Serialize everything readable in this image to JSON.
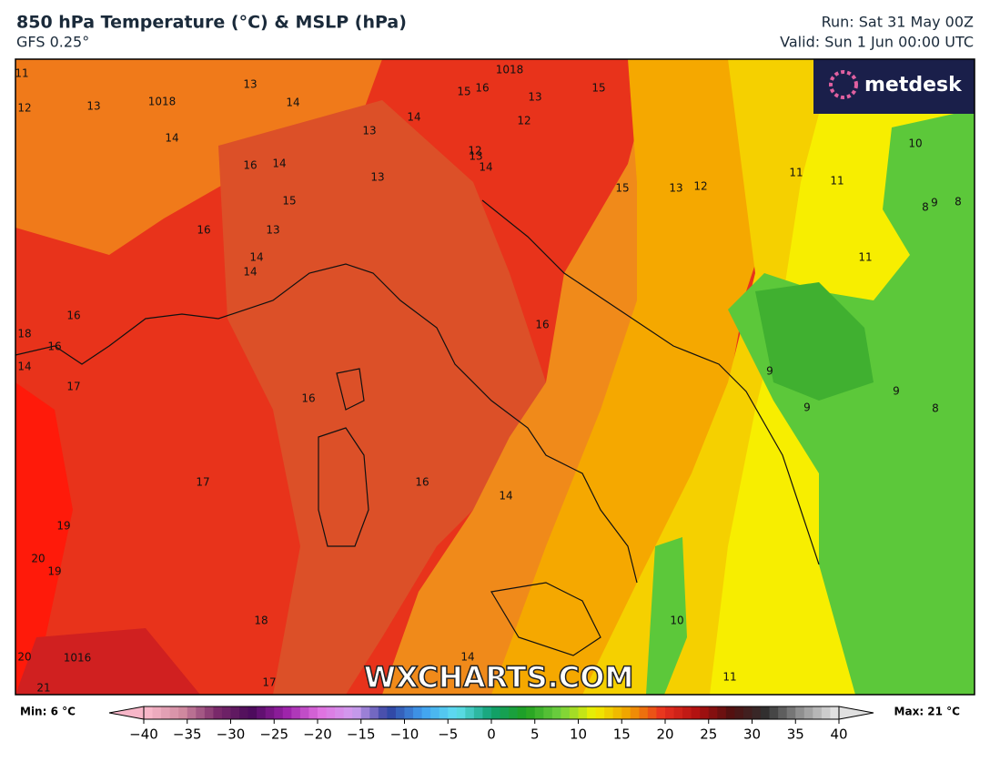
{
  "header": {
    "title": "850 hPa Temperature (°C) & MSLP (hPa)",
    "subtitle": "GFS 0.25°",
    "run": "Run: Sat 31 May 00Z",
    "valid": "Valid: Sun 1 Jun 00:00 UTC"
  },
  "logo": "metdesk",
  "watermark": "WXCHARTS.COM",
  "map_labels": [
    "11",
    "12",
    "13",
    "14",
    "13",
    "14",
    "16",
    "14",
    "15",
    "16",
    "13",
    "14",
    "14",
    "16",
    "18",
    "16",
    "14",
    "17",
    "16",
    "17",
    "19",
    "20",
    "19",
    "18",
    "20",
    "21",
    "17",
    "16",
    "14",
    "16",
    "14",
    "10",
    "11",
    "13",
    "12",
    "15",
    "11",
    "11",
    "10",
    "8",
    "9",
    "8",
    "11",
    "9",
    "9",
    "9",
    "8",
    "13",
    "13",
    "13",
    "14",
    "12",
    "13",
    "15",
    "16",
    "15",
    "14",
    "12",
    "1018",
    "1018",
    "1016"
  ],
  "legend": {
    "min": "Min: 6 °C",
    "max": "Max: 21 °C",
    "lim": [
      -40,
      40
    ],
    "ticks": [
      {
        "value": -40,
        "label": "−40"
      },
      {
        "value": -35,
        "label": "−35"
      },
      {
        "value": -30,
        "label": "−30"
      },
      {
        "value": -25,
        "label": "−25"
      },
      {
        "value": -20,
        "label": "−20"
      },
      {
        "value": -15,
        "label": "−15"
      },
      {
        "value": -10,
        "label": "−10"
      },
      {
        "value": -5,
        "label": "−5"
      },
      0,
      5,
      10,
      15,
      20,
      25,
      30,
      35,
      40
    ],
    "colors": [
      "#f7b6c8",
      "#d08aa0",
      "#7a2a6a",
      "#4a0a5a",
      "#9a20a8",
      "#e070e0",
      "#d0a0f0",
      "#3040a0",
      "#40a0f0",
      "#60e0f0",
      "#10a070",
      "#20a020",
      "#70d040",
      "#f0f000",
      "#f0a000",
      "#e83020",
      "#b01010",
      "#501010",
      "#303030",
      "#909090",
      "#e0e0e0"
    ]
  }
}
